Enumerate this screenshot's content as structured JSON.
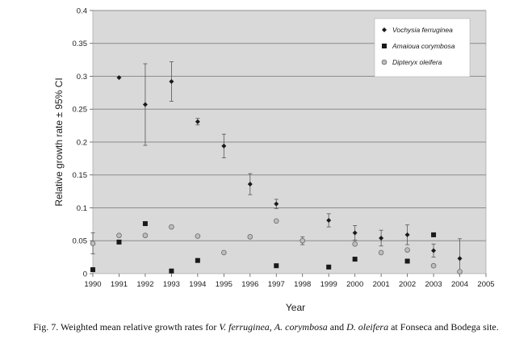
{
  "chart_data": {
    "type": "scatter",
    "xlabel": "Year",
    "ylabel": "Relative growth rate ± 95% CI",
    "xlim": [
      1990,
      2005
    ],
    "ylim": [
      0,
      0.4
    ],
    "x_ticks": [
      "1990",
      "1991",
      "1992",
      "1993",
      "1994",
      "1995",
      "1996",
      "1997",
      "1998",
      "1999",
      "2000",
      "2001",
      "2002",
      "2003",
      "2004",
      "2005"
    ],
    "y_ticks": [
      "0",
      "0.05",
      "0.1",
      "0.15",
      "0.2",
      "0.25",
      "0.3",
      "0.35",
      "0.4"
    ],
    "grid": true,
    "legend_position": "top-right",
    "series": [
      {
        "name": "Vochysia ferruginea",
        "marker": "diamond",
        "color": "#1a1a1a",
        "points": [
          {
            "x": 1991,
            "y": 0.298,
            "ci": 0.0
          },
          {
            "x": 1992,
            "y": 0.257,
            "ci": 0.062
          },
          {
            "x": 1993,
            "y": 0.292,
            "ci": 0.03
          },
          {
            "x": 1994,
            "y": 0.231,
            "ci": 0.005
          },
          {
            "x": 1995,
            "y": 0.194,
            "ci": 0.018
          },
          {
            "x": 1996,
            "y": 0.136,
            "ci": 0.016
          },
          {
            "x": 1997,
            "y": 0.106,
            "ci": 0.007
          },
          {
            "x": 1999,
            "y": 0.081,
            "ci": 0.01
          },
          {
            "x": 2000,
            "y": 0.062,
            "ci": 0.011
          },
          {
            "x": 2001,
            "y": 0.054,
            "ci": 0.012
          },
          {
            "x": 2002,
            "y": 0.059,
            "ci": 0.015
          },
          {
            "x": 2003,
            "y": 0.035,
            "ci": 0.01
          },
          {
            "x": 2004,
            "y": 0.023,
            "ci": 0.03
          }
        ]
      },
      {
        "name": "Amaioua corymbosa",
        "marker": "square",
        "color": "#1a1a1a",
        "points": [
          {
            "x": 1990,
            "y": 0.006
          },
          {
            "x": 1991,
            "y": 0.048
          },
          {
            "x": 1992,
            "y": 0.076
          },
          {
            "x": 1993,
            "y": 0.004
          },
          {
            "x": 1994,
            "y": 0.02
          },
          {
            "x": 1997,
            "y": 0.012
          },
          {
            "x": 1999,
            "y": 0.01
          },
          {
            "x": 2000,
            "y": 0.022
          },
          {
            "x": 2002,
            "y": 0.019
          },
          {
            "x": 2003,
            "y": 0.059
          }
        ]
      },
      {
        "name": "Dipteryx oleifera",
        "marker": "circle",
        "color": "#bdbdbd",
        "points": [
          {
            "x": 1990,
            "y": 0.046,
            "ci": 0.016
          },
          {
            "x": 1991,
            "y": 0.058
          },
          {
            "x": 1992,
            "y": 0.058
          },
          {
            "x": 1993,
            "y": 0.071
          },
          {
            "x": 1994,
            "y": 0.057
          },
          {
            "x": 1995,
            "y": 0.032
          },
          {
            "x": 1996,
            "y": 0.056
          },
          {
            "x": 1997,
            "y": 0.08
          },
          {
            "x": 1998,
            "y": 0.05,
            "ci": 0.006
          },
          {
            "x": 2000,
            "y": 0.045
          },
          {
            "x": 2001,
            "y": 0.032
          },
          {
            "x": 2002,
            "y": 0.036
          },
          {
            "x": 2003,
            "y": 0.012
          },
          {
            "x": 2004,
            "y": 0.003
          }
        ]
      }
    ]
  },
  "caption": {
    "prefix": "Fig. 7. Weighted mean relative growth rates for ",
    "sp1": "V. ferruginea",
    "sep1": ", ",
    "sp2": "A. corymbosa",
    "sep2": " and ",
    "sp3": "D. oleifera",
    "suffix": " at Fonseca and Bodega site."
  },
  "colors": {
    "plot_background": "#d9d9d9",
    "gridline": "#8c8c8c",
    "legend_background": "#ffffff"
  }
}
